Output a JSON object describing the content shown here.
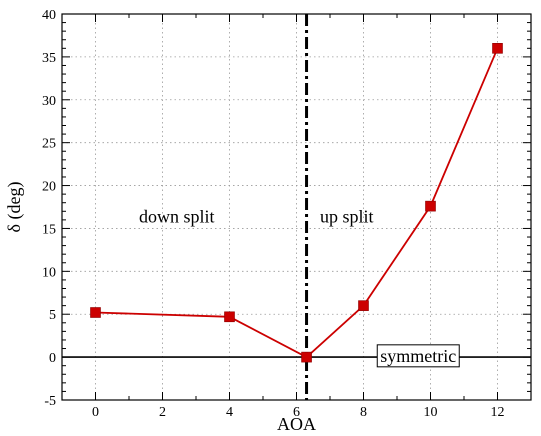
{
  "chart_data": {
    "type": "line",
    "title": "",
    "xlabel": "AOA",
    "ylabel": "δ (deg)",
    "xlim": [
      -1,
      13
    ],
    "ylim": [
      -5,
      40
    ],
    "x_ticks": [
      0,
      2,
      4,
      6,
      8,
      10,
      12
    ],
    "y_ticks": [
      -5,
      0,
      5,
      10,
      15,
      20,
      25,
      30,
      35,
      40
    ],
    "grid": true,
    "series": [
      {
        "x": [
          0,
          4,
          6.3,
          8,
          10,
          12
        ],
        "values": [
          5.2,
          4.7,
          0,
          6.0,
          17.6,
          36.0
        ],
        "color": "#cc0000",
        "marker": "square"
      }
    ],
    "reference_lines": {
      "horizontal_zero": {
        "y": 0,
        "color": "#000000",
        "style": "solid"
      },
      "split_divider": {
        "x": 6.3,
        "color": "#000000",
        "style": "dash-dot"
      }
    },
    "annotations": {
      "left_region": "down split",
      "right_region": "up split",
      "boxed_label": "symmetric"
    }
  }
}
